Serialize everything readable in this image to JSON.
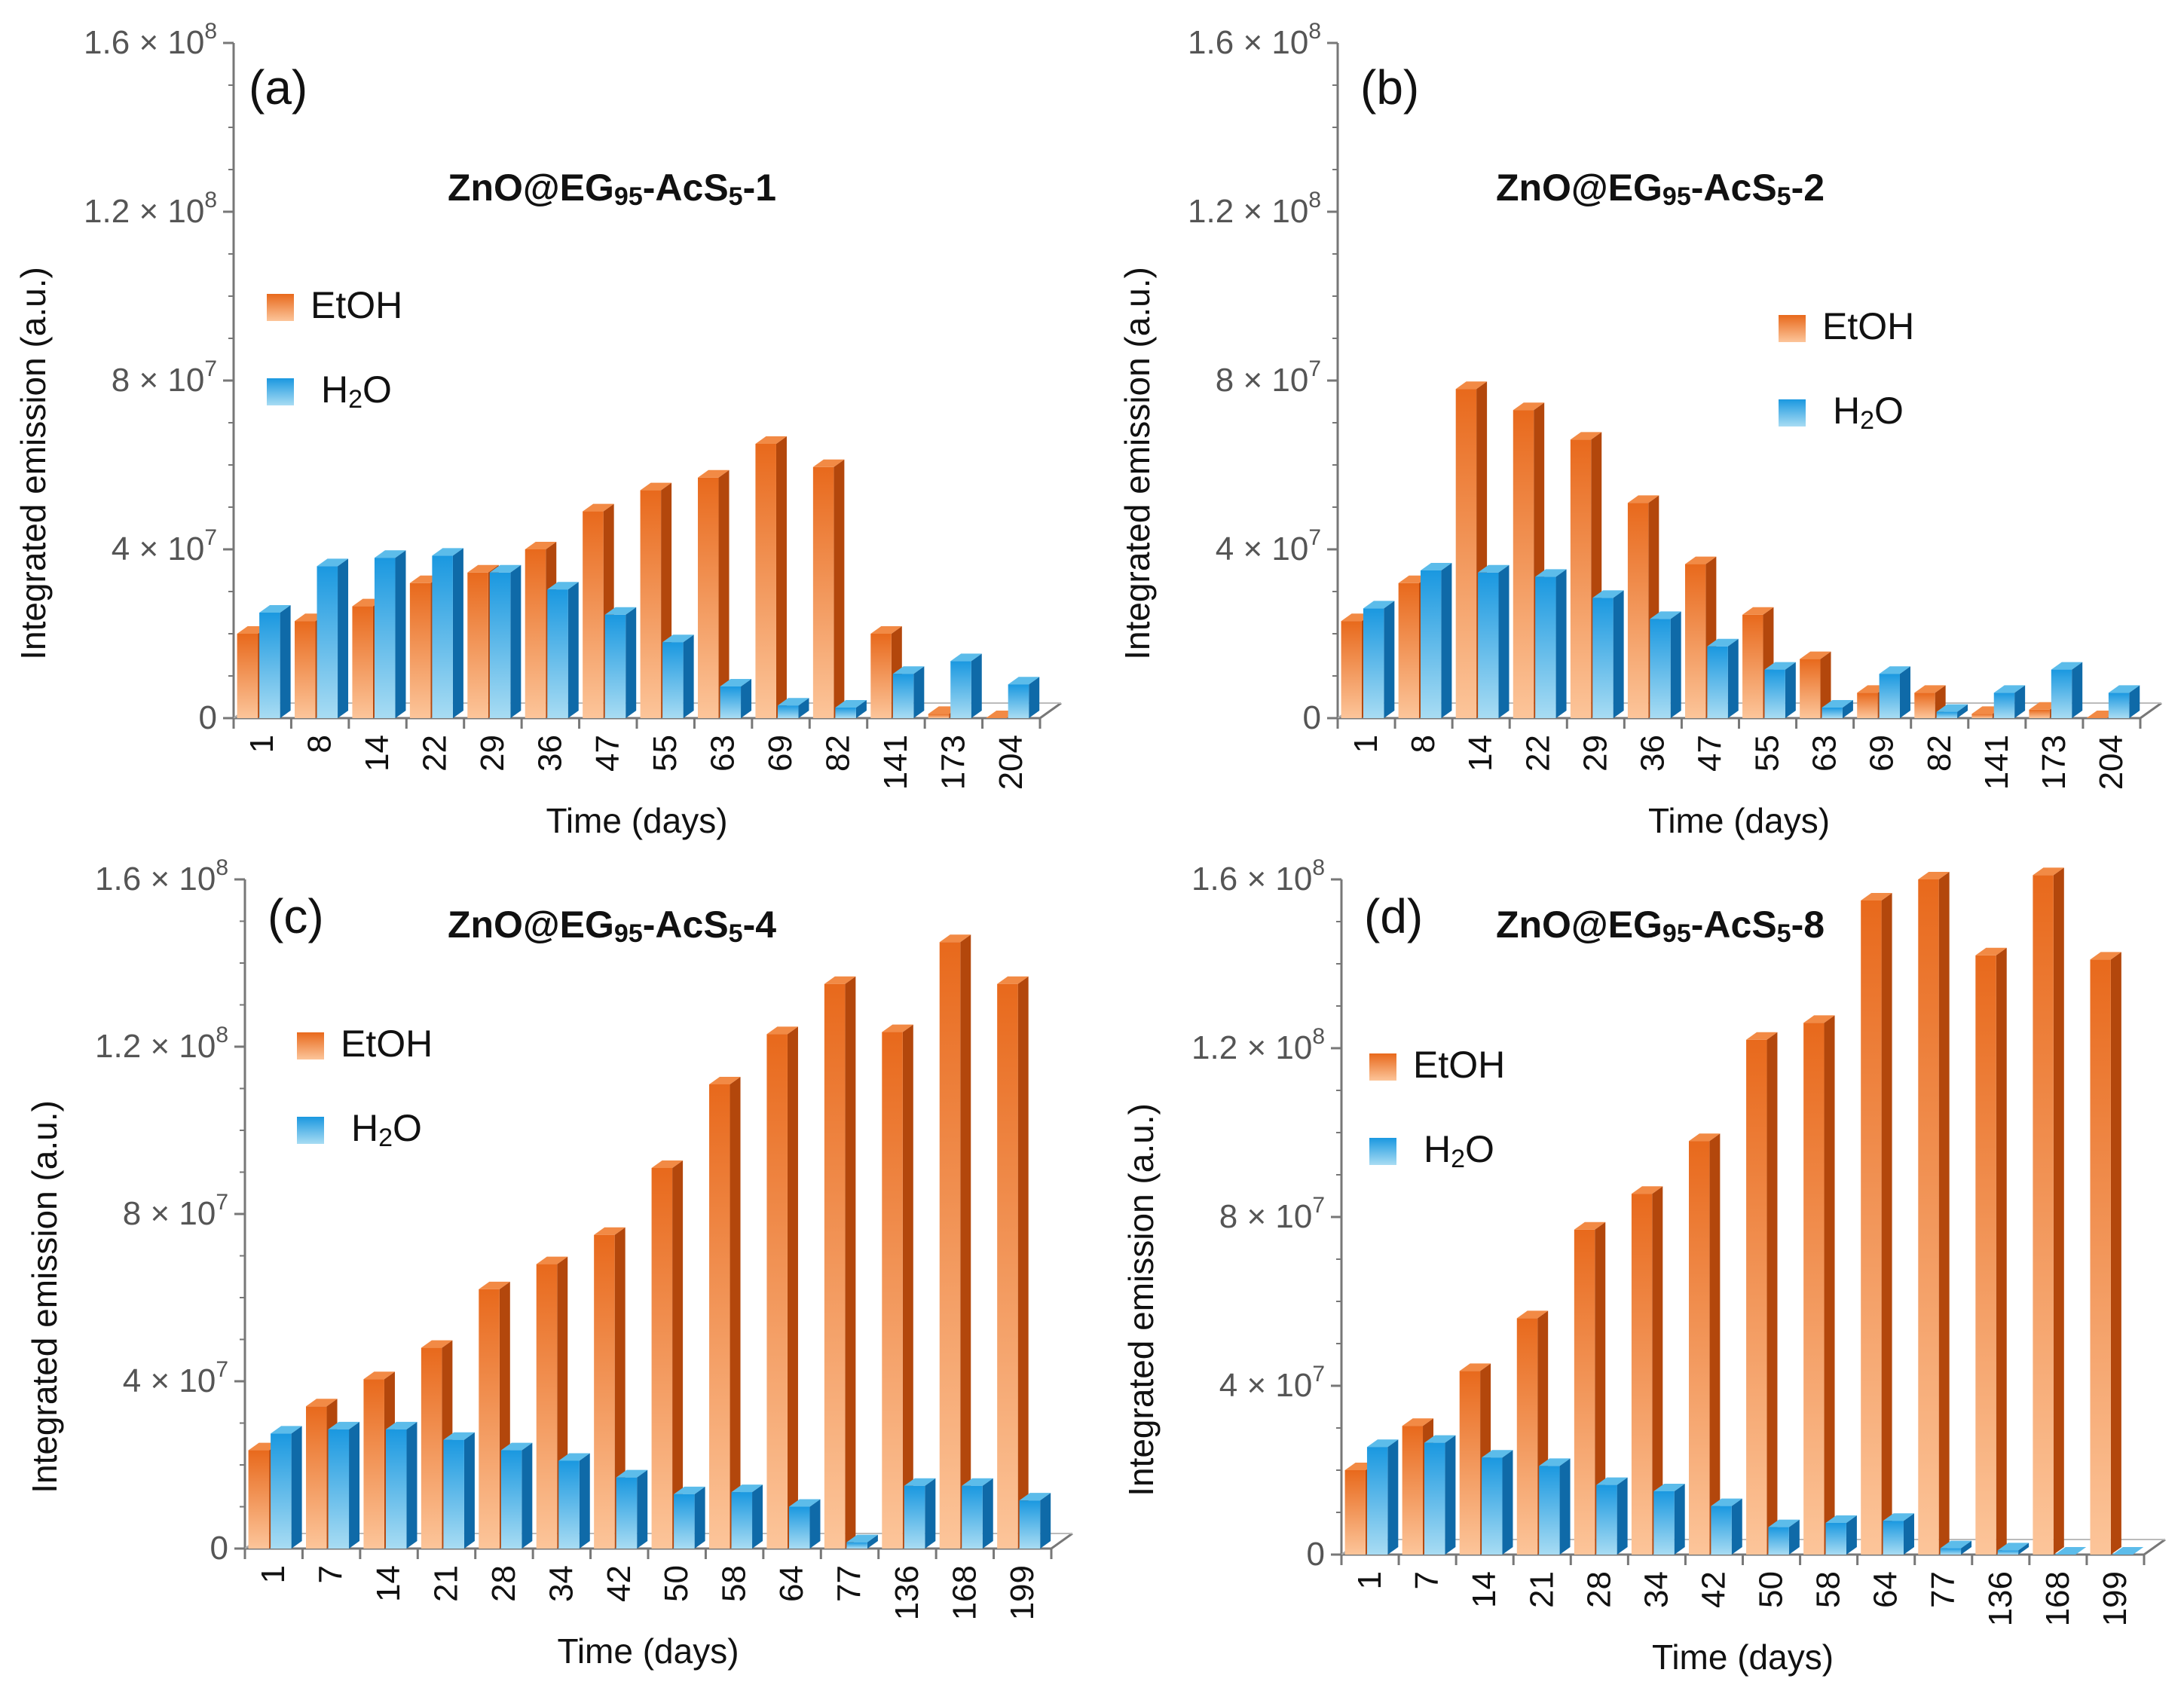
{
  "figure": {
    "type": "bar",
    "value_unit": "integrated emission (a.u.)",
    "y_ticks": [
      {
        "value": 0,
        "base": "0",
        "exp": ""
      },
      {
        "value": 40000000,
        "base": "4 × 10",
        "exp": "7"
      },
      {
        "value": 80000000,
        "base": "8 × 10",
        "exp": "7"
      },
      {
        "value": 120000000,
        "base": "1.2 × 10",
        "exp": "8"
      },
      {
        "value": 160000000,
        "base": "1.6 × 10",
        "exp": "8"
      }
    ],
    "colors": {
      "etoh_top": "#e8691c",
      "etoh_bottom": "#fcc59a",
      "etoh_side": "#b3470c",
      "etoh_cap": "#f28a45",
      "h2o_top": "#1a98e0",
      "h2o_bottom": "#a8dcf3",
      "h2o_side": "#0f6aa8",
      "h2o_cap": "#5cbcea",
      "axis": "#777777"
    }
  },
  "chart_data": [
    {
      "type": "bar",
      "panel_label": "(a)",
      "title_parts": [
        "ZnO@EG",
        "95",
        "-AcS",
        "5",
        "-1"
      ],
      "xlabel": "Time (days)",
      "ylabel": "Integrated emission (a.u.)",
      "ylim": [
        0,
        160000000
      ],
      "categories": [
        "1",
        "8",
        "14",
        "22",
        "29",
        "36",
        "47",
        "55",
        "63",
        "69",
        "82",
        "141",
        "173",
        "204"
      ],
      "series": [
        {
          "name": "EtOH",
          "values": [
            20000000,
            23000000,
            26500000,
            32000000,
            34500000,
            40000000,
            49000000,
            54000000,
            57000000,
            65000000,
            59500000,
            20000000,
            1000000,
            0
          ]
        },
        {
          "name": "H2O",
          "values": [
            25000000,
            36000000,
            38000000,
            38500000,
            34500000,
            30500000,
            24500000,
            18000000,
            7500000,
            3000000,
            2500000,
            10500000,
            13500000,
            8000000
          ]
        }
      ],
      "legend": {
        "labels": [
          "EtOH",
          "H",
          "2",
          "O"
        ]
      }
    },
    {
      "type": "bar",
      "panel_label": "(b)",
      "title_parts": [
        "ZnO@EG",
        "95",
        "-AcS",
        "5",
        "-2"
      ],
      "xlabel": "Time (days)",
      "ylabel": "Integrated emission (a.u.)",
      "ylim": [
        0,
        160000000
      ],
      "categories": [
        "1",
        "8",
        "14",
        "22",
        "29",
        "36",
        "47",
        "55",
        "63",
        "69",
        "82",
        "141",
        "173",
        "204"
      ],
      "series": [
        {
          "name": "EtOH",
          "values": [
            23000000,
            32000000,
            78000000,
            73000000,
            66000000,
            51000000,
            36500000,
            24500000,
            14000000,
            6000000,
            6000000,
            1000000,
            2000000,
            0
          ]
        },
        {
          "name": "H2O",
          "values": [
            26000000,
            35000000,
            34500000,
            33500000,
            28500000,
            23500000,
            17000000,
            11500000,
            2500000,
            10500000,
            1500000,
            6000000,
            11500000,
            6000000
          ]
        }
      ],
      "legend": {
        "labels": [
          "EtOH",
          "H",
          "2",
          "O"
        ]
      }
    },
    {
      "type": "bar",
      "panel_label": "(c)",
      "title_parts": [
        "ZnO@EG",
        "95",
        "-AcS",
        "5",
        "-4"
      ],
      "xlabel": "Time (days)",
      "ylabel": "Integrated emission (a.u.)",
      "ylim": [
        0,
        160000000
      ],
      "categories": [
        "1",
        "7",
        "14",
        "21",
        "28",
        "34",
        "42",
        "50",
        "58",
        "64",
        "77",
        "136",
        "168",
        "199"
      ],
      "series": [
        {
          "name": "EtOH",
          "values": [
            23500000,
            34000000,
            40500000,
            48000000,
            62000000,
            68000000,
            75000000,
            91000000,
            111000000,
            123000000,
            135000000,
            123500000,
            145000000,
            135000000
          ]
        },
        {
          "name": "H2O",
          "values": [
            27500000,
            28500000,
            28500000,
            26000000,
            23500000,
            21000000,
            17000000,
            13000000,
            13500000,
            10000000,
            1500000,
            15000000,
            15000000,
            11500000
          ]
        }
      ],
      "legend": {
        "labels": [
          "EtOH",
          "H",
          "2",
          "O"
        ]
      }
    },
    {
      "type": "bar",
      "panel_label": "(d)",
      "title_parts": [
        "ZnO@EG",
        "95",
        "-AcS",
        "5",
        "-8"
      ],
      "xlabel": "Time (days)",
      "ylabel": "Integrated emission (a.u.)",
      "ylim": [
        0,
        160000000
      ],
      "categories": [
        "1",
        "7",
        "14",
        "21",
        "28",
        "34",
        "42",
        "50",
        "58",
        "64",
        "77",
        "136",
        "168",
        "199"
      ],
      "series": [
        {
          "name": "EtOH",
          "values": [
            20000000,
            30500000,
            43500000,
            56000000,
            77000000,
            85500000,
            98000000,
            122000000,
            126000000,
            155000000,
            160000000,
            142000000,
            161000000,
            141000000
          ]
        },
        {
          "name": "H2O",
          "values": [
            25500000,
            26500000,
            23000000,
            21000000,
            16500000,
            15000000,
            11500000,
            6500000,
            7500000,
            8000000,
            1500000,
            1000000,
            0,
            0
          ]
        }
      ],
      "legend": {
        "labels": [
          "EtOH",
          "H",
          "2",
          "O"
        ]
      }
    }
  ]
}
